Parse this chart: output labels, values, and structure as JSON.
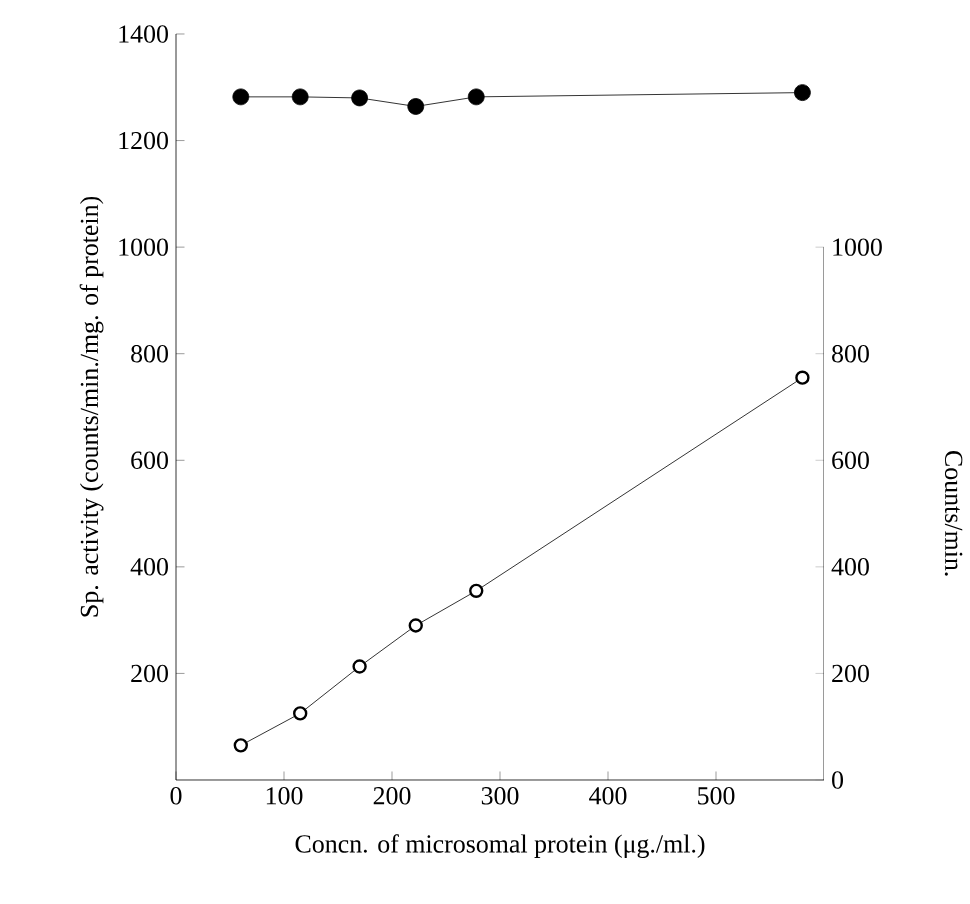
{
  "chart_data": {
    "type": "line",
    "xlabel": "Concn. of microsomal protein (μg./ml.)",
    "ylabel": "Sp. activity (counts/min./mg. of protein)",
    "y2label": "Counts/min.",
    "xlim": [
      0,
      600
    ],
    "xticks": [
      0,
      100,
      200,
      300,
      400,
      500
    ],
    "ylim": [
      0,
      1400
    ],
    "yticks": [
      200,
      400,
      600,
      800,
      1000,
      1200,
      1400
    ],
    "y2lim": [
      0,
      1400
    ],
    "y2ticks": [
      0,
      200,
      400,
      600,
      800,
      1000
    ],
    "marker": "circle",
    "line_style": "solid",
    "grid": false,
    "series": [
      {
        "color": "#000000",
        "x": [
          60,
          115,
          170,
          222,
          278,
          580
        ],
        "values": [
          1282,
          1282,
          1280,
          1264,
          1282,
          1290
        ]
      },
      {
        "color": "#000000",
        "axis": "y2",
        "x": [
          60,
          115,
          170,
          222,
          278,
          580
        ],
        "values": [
          65,
          125,
          213,
          290,
          355,
          755
        ]
      }
    ]
  }
}
